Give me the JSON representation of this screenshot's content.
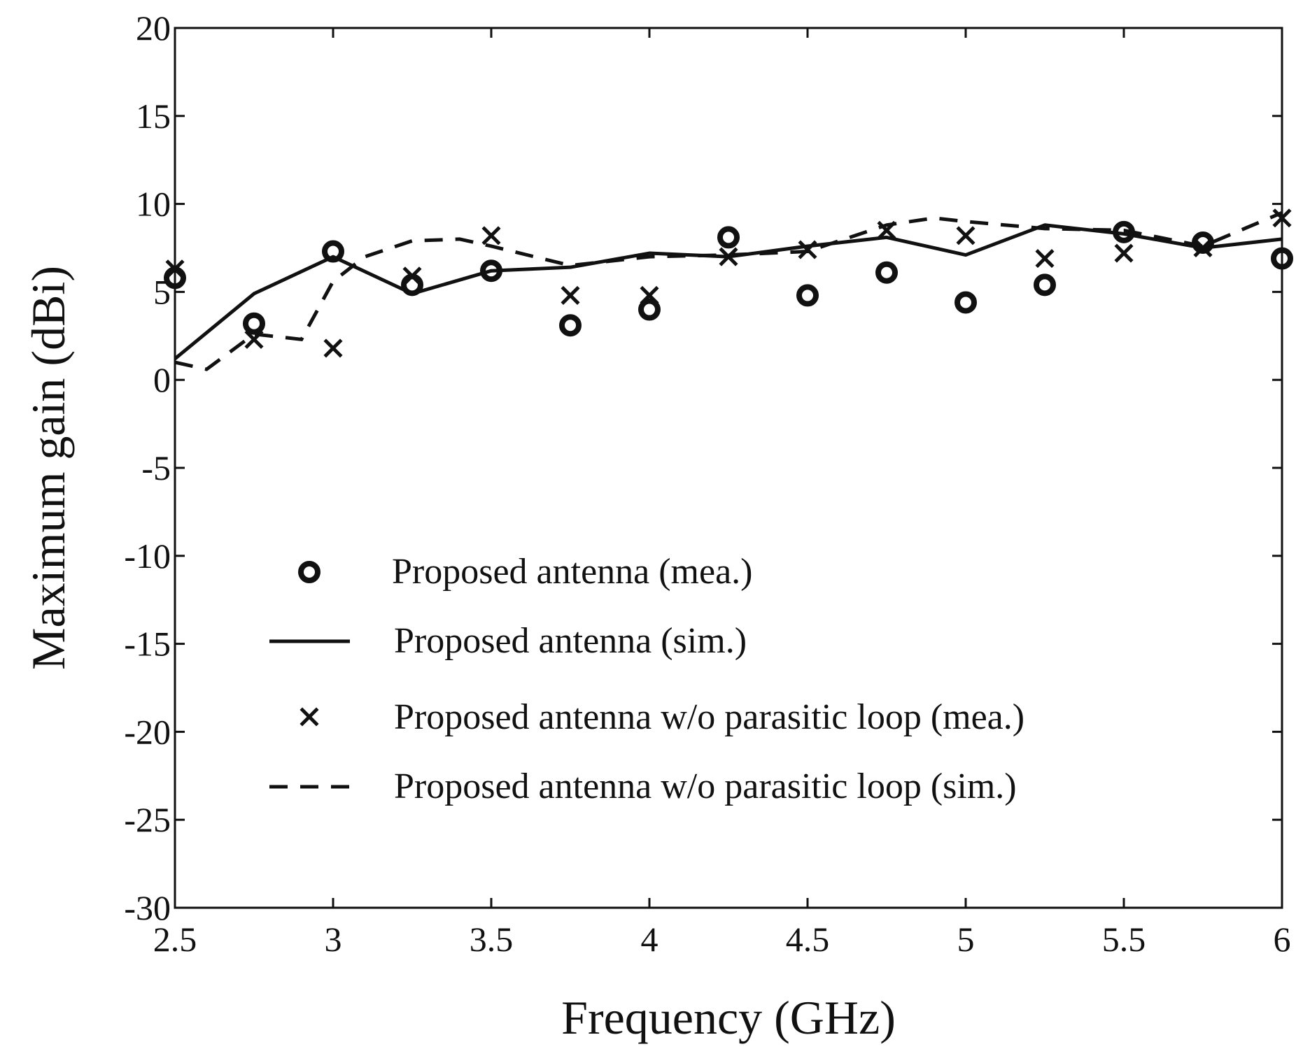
{
  "chart_data": {
    "type": "line",
    "title": "",
    "xlabel": "Frequency (GHz)",
    "ylabel": "Maximum gain (dBi)",
    "xlim": [
      2.5,
      6
    ],
    "ylim": [
      -30,
      20
    ],
    "grid": false,
    "x_ticks": [
      2.5,
      3,
      3.5,
      4,
      4.5,
      5,
      5.5,
      6
    ],
    "x_tick_labels": [
      "2.5",
      "3",
      "3.5",
      "4",
      "4.5",
      "5",
      "5.5",
      "6"
    ],
    "y_ticks": [
      20,
      15,
      10,
      5,
      0,
      -5,
      -10,
      -15,
      -20,
      -25,
      -30
    ],
    "y_tick_labels": [
      "20",
      "15",
      "10",
      "5",
      "0",
      "-5",
      "-10",
      "-15",
      "-20",
      "-25",
      "-30"
    ],
    "legend_position": "lower-center",
    "series": [
      {
        "name": "Proposed antenna (mea.)",
        "style": "circle",
        "x": [
          2.5,
          2.75,
          3.0,
          3.25,
          3.5,
          3.75,
          4.0,
          4.25,
          4.5,
          4.75,
          5.0,
          5.25,
          5.5,
          5.75,
          6.0
        ],
        "y": [
          5.8,
          3.2,
          7.3,
          5.4,
          6.2,
          3.1,
          4.0,
          8.1,
          4.8,
          6.1,
          4.4,
          5.4,
          8.4,
          7.8,
          6.9
        ]
      },
      {
        "name": "Proposed antenna (sim.)",
        "style": "solid",
        "x": [
          2.5,
          2.75,
          3.0,
          3.25,
          3.5,
          3.75,
          4.0,
          4.25,
          4.5,
          4.75,
          5.0,
          5.25,
          5.5,
          5.75,
          6.0
        ],
        "y": [
          1.2,
          4.9,
          7.0,
          4.9,
          6.2,
          6.4,
          7.2,
          7.0,
          7.6,
          8.1,
          7.1,
          8.8,
          8.3,
          7.5,
          8.0
        ]
      },
      {
        "name": "Proposed antenna w/o parasitic loop (mea.)",
        "style": "x",
        "x": [
          2.5,
          2.75,
          3.0,
          3.25,
          3.5,
          3.75,
          4.0,
          4.25,
          4.5,
          4.75,
          5.0,
          5.25,
          5.5,
          5.75,
          6.0
        ],
        "y": [
          6.3,
          2.3,
          1.8,
          5.9,
          8.2,
          4.8,
          4.8,
          7.0,
          7.4,
          8.5,
          8.2,
          6.9,
          7.2,
          7.5,
          9.2
        ]
      },
      {
        "name": "Proposed antenna w/o parasitic loop (sim.)",
        "style": "dashed",
        "x": [
          2.5,
          2.6,
          2.75,
          2.9,
          3.0,
          3.1,
          3.25,
          3.4,
          3.5,
          3.75,
          4.0,
          4.25,
          4.5,
          4.75,
          4.9,
          5.0,
          5.25,
          5.5,
          5.75,
          6.0
        ],
        "y": [
          1.0,
          0.6,
          2.6,
          2.3,
          5.6,
          7.0,
          7.9,
          8.0,
          7.6,
          6.5,
          7.0,
          7.1,
          7.3,
          8.8,
          9.2,
          9.0,
          8.6,
          8.5,
          7.6,
          9.5
        ]
      }
    ]
  }
}
